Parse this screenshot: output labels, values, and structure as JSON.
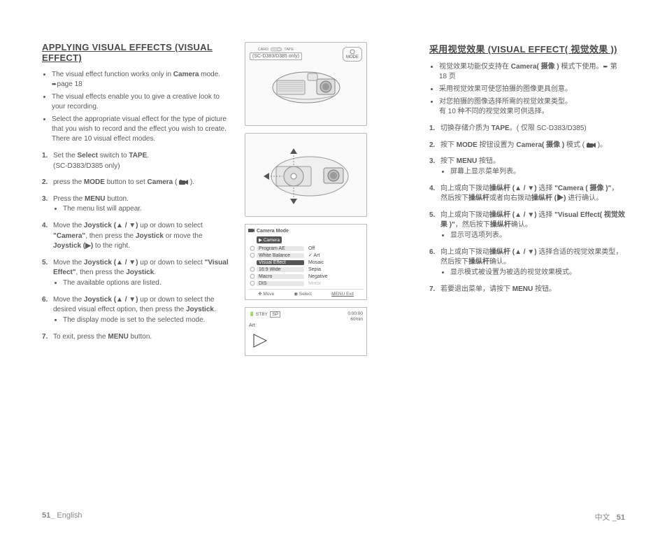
{
  "left": {
    "title": "APPLYING VISUAL EFFECTS (VISUAL EFFECT)",
    "bullets": [
      {
        "t1": "The visual effect function works only in ",
        "b": "Camera",
        "t2": " mode. ",
        "pg": "page 18"
      },
      {
        "t1": "The visual effects enable you to give a creative look to your recording."
      },
      {
        "t1": "Select the appropriate visual effect for the type of picture that you wish to record and the effect you wish to create. There are 10 visual effect modes."
      }
    ],
    "steps": [
      {
        "n": "1.",
        "parts": [
          {
            "t": "Set the "
          },
          {
            "b": "Select"
          },
          {
            "t": " switch to "
          },
          {
            "b": "TAPE"
          },
          {
            "t": "."
          }
        ],
        "after": "(SC-D383/D385 only)"
      },
      {
        "n": "2.",
        "parts": [
          {
            "t": "press the "
          },
          {
            "b": "MODE"
          },
          {
            "t": " button to set "
          },
          {
            "b": "Camera"
          },
          {
            "t": " ( "
          },
          {
            "icon": "cam"
          },
          {
            "t": " )."
          }
        ]
      },
      {
        "n": "3.",
        "parts": [
          {
            "t": "Press the "
          },
          {
            "b": "MENU"
          },
          {
            "t": " button."
          }
        ],
        "sub": [
          "The menu list will appear."
        ]
      },
      {
        "n": "4.",
        "parts": [
          {
            "t": "Move the "
          },
          {
            "b": "Joystick (▲ / ▼)"
          },
          {
            "t": " up or down to select "
          },
          {
            "b": "\"Camera\""
          },
          {
            "t": ", then press the "
          },
          {
            "b": "Joystick"
          },
          {
            "t": " or move the "
          },
          {
            "b": "Joystick (▶)"
          },
          {
            "t": " to the right."
          }
        ]
      },
      {
        "n": "5.",
        "parts": [
          {
            "t": "Move the "
          },
          {
            "b": "Joystick (▲ / ▼)"
          },
          {
            "t": " up or down to select "
          },
          {
            "b": "\"Visual Effect\""
          },
          {
            "t": ", then press the "
          },
          {
            "b": "Joystick"
          },
          {
            "t": "."
          }
        ],
        "sub": [
          "The available options are listed."
        ]
      },
      {
        "n": "6.",
        "parts": [
          {
            "t": "Move the "
          },
          {
            "b": "Joystick (▲ / ▼)"
          },
          {
            "t": " up or down to select the desired visual effect option, then press the "
          },
          {
            "b": "Joystick"
          },
          {
            "t": "."
          }
        ],
        "sub": [
          "The display mode is set to the selected mode."
        ]
      },
      {
        "n": "7.",
        "parts": [
          {
            "t": "To exit, press the "
          },
          {
            "b": "MENU"
          },
          {
            "t": " button."
          }
        ]
      }
    ]
  },
  "right": {
    "title": "采用视觉效果 (VISUAL EFFECT( 视觉效果 ))",
    "bullets": [
      {
        "parts": [
          {
            "t": "视觉效果功能仅支持在 "
          },
          {
            "b": "Camera( 摄像 )"
          },
          {
            "t": " 模式下使用。"
          },
          {
            "arrow": true
          },
          {
            "t": " 第 18 页"
          }
        ]
      },
      {
        "parts": [
          {
            "t": "采用视觉效果可使您拍摄的图像更具创意。"
          }
        ]
      },
      {
        "parts": [
          {
            "t": "对您拍摄的图像选择所需的视觉效果类型。"
          }
        ],
        "after": "有 10 种不同的视觉效果可供选择。"
      }
    ],
    "steps": [
      {
        "n": "1.",
        "parts": [
          {
            "t": "切换存储介质为 "
          },
          {
            "b": "TAPE"
          },
          {
            "t": "。( 仅限 SC-D383/D385)"
          }
        ]
      },
      {
        "n": "2.",
        "parts": [
          {
            "t": "按下 "
          },
          {
            "b": "MODE"
          },
          {
            "t": " 按钮设置为 "
          },
          {
            "b": "Camera( 摄像 )"
          },
          {
            "t": " 模式 ( "
          },
          {
            "icon": "cam"
          },
          {
            "t": " )。"
          }
        ]
      },
      {
        "n": "3.",
        "parts": [
          {
            "t": "按下 "
          },
          {
            "b": "MENU"
          },
          {
            "t": " 按钮。"
          }
        ],
        "sub": [
          "屏幕上显示菜单列表。"
        ]
      },
      {
        "n": "4.",
        "parts": [
          {
            "t": "向上或向下拨动"
          },
          {
            "b": "操纵杆 (▲ / ▼)"
          },
          {
            "t": " 选择 "
          },
          {
            "b": "\"Camera ( 摄像 )\""
          },
          {
            "t": "，然后按下"
          },
          {
            "b": "操纵杆"
          },
          {
            "t": "或者向右拨动"
          },
          {
            "b": "操纵杆 (▶)"
          },
          {
            "t": " 进行确认。"
          }
        ]
      },
      {
        "n": "5.",
        "parts": [
          {
            "t": "向上或向下拨动"
          },
          {
            "b": "操纵杆 (▲ / ▼)"
          },
          {
            "t": " 选择 "
          },
          {
            "b": "\"Visual Effect( 视觉效果 )\""
          },
          {
            "t": "，然后按下"
          },
          {
            "b": "操纵杆"
          },
          {
            "t": "确认。"
          }
        ],
        "sub": [
          "显示可选项列表。"
        ]
      },
      {
        "n": "6.",
        "parts": [
          {
            "t": "向上或向下拨动"
          },
          {
            "b": "操纵杆 (▲ / ▼)"
          },
          {
            "t": " 选择合适的视觉效果类型，然后按下"
          },
          {
            "b": "操纵杆"
          },
          {
            "t": "确认。"
          }
        ],
        "sub": [
          "显示模式被设置为被选的视觉效果模式。"
        ]
      },
      {
        "n": "7.",
        "parts": [
          {
            "t": "若要退出菜单，请按下 "
          },
          {
            "b": "MENU"
          },
          {
            "t": " 按钮。"
          }
        ]
      }
    ]
  },
  "illu": {
    "card": "CARD",
    "tape": "TAPE",
    "note": "(SC-D383/D385 only)",
    "mode": "MODE"
  },
  "menu": {
    "title": "Camera Mode",
    "tab": "Camera",
    "rows": [
      {
        "l": "Program AE",
        "r": "Off"
      },
      {
        "l": "White Balance",
        "r": "Art",
        "chk": true
      },
      {
        "l": "Visual Effect",
        "r": "Mosaic",
        "sel": true
      },
      {
        "l": "16:9 Wide",
        "r": "Sepia"
      },
      {
        "l": "Macro",
        "r": "Negative"
      },
      {
        "l": "DIS",
        "r": "Mirror",
        "dim": true
      }
    ],
    "foot": {
      "move": "Move",
      "select": "Select",
      "exit": "MENU Exit"
    }
  },
  "osd": {
    "stby": "STBY",
    "sp": "SP",
    "time": "0:00:00",
    "min": "60min",
    "art": "Art"
  },
  "footer": {
    "l1": "51_",
    "l2": " English",
    "r1": "中文 _",
    "r2": "51"
  }
}
